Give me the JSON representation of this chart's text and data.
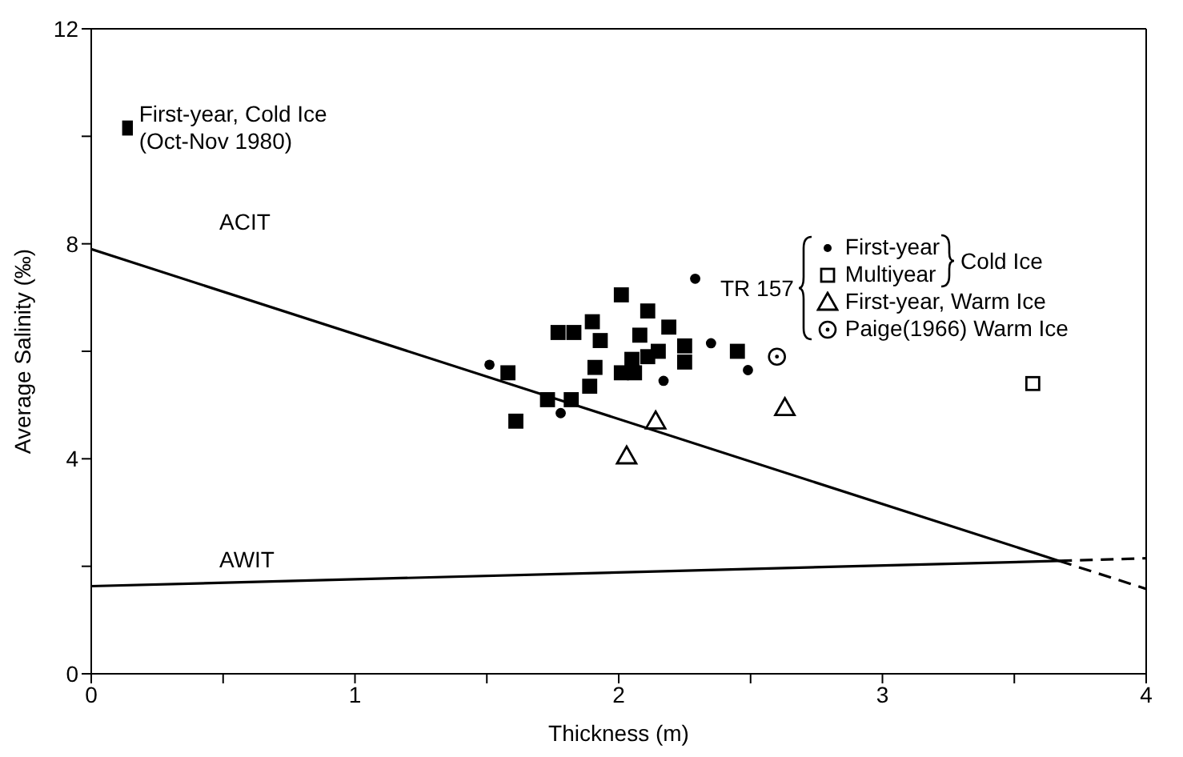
{
  "chart_data": {
    "type": "scatter",
    "xlabel": "Thickness (m)",
    "ylabel": "Average Salinity (‰)",
    "xlim": [
      0,
      4
    ],
    "ylim": [
      0,
      12
    ],
    "xticks": [
      0,
      {
        "value": 0.5,
        "label": null
      },
      1,
      {
        "value": 1.5,
        "label": null
      },
      2,
      {
        "value": 2.5,
        "label": null
      },
      3,
      {
        "value": 3.5,
        "label": null
      },
      4
    ],
    "yticks": [
      0,
      {
        "value": 2,
        "label": null
      },
      4,
      {
        "value": 6,
        "label": null
      },
      8,
      {
        "value": 10,
        "label": null
      },
      12
    ],
    "grid": false,
    "legend": "top",
    "annotations": [
      "TR 157",
      "Cold Ice"
    ],
    "series": [
      {
        "name": "First-year, Cold Ice (Oct-Nov 1980)",
        "marker": "square",
        "color": "#000000",
        "x": [
          1.58,
          1.61,
          1.73,
          1.82,
          1.77,
          1.83,
          1.9,
          1.93,
          1.91,
          1.89,
          2.01,
          2.01,
          2.06,
          2.05,
          2.08,
          2.11,
          2.11,
          2.15,
          2.19,
          2.25,
          2.25,
          2.45
        ],
        "values": [
          5.6,
          4.7,
          5.1,
          5.1,
          6.35,
          6.35,
          6.55,
          6.2,
          5.7,
          5.35,
          7.05,
          5.6,
          5.6,
          5.85,
          6.3,
          6.75,
          5.9,
          6.0,
          6.45,
          6.1,
          5.8,
          6.0
        ]
      },
      {
        "name": "First-year",
        "marker": "circle",
        "color": "#000000",
        "x": [
          1.51,
          1.78,
          2.29,
          2.17,
          2.35,
          2.49
        ],
        "values": [
          5.75,
          4.85,
          7.35,
          5.45,
          6.15,
          5.65
        ]
      },
      {
        "name": "Multiyear",
        "marker": "square",
        "color": "#000000",
        "x": [
          3.57
        ],
        "values": [
          5.4
        ]
      },
      {
        "name": "First-year, Warm Ice",
        "marker": "triangle",
        "color": "#000000",
        "x": [
          2.03,
          2.14,
          2.63
        ],
        "values": [
          4.05,
          4.7,
          4.95
        ]
      },
      {
        "name": "Paige(1966) Warm Ice",
        "marker": "circle",
        "color": "#000000",
        "x": [
          2.6
        ],
        "values": [
          5.9
        ]
      },
      {
        "name": "ACIT",
        "type": "line",
        "line_style": "solid",
        "color": "#000000",
        "x": [
          0,
          3.67
        ],
        "values": [
          7.9,
          2.1
        ]
      },
      {
        "name": "AWIT",
        "type": "line",
        "line_style": "solid",
        "color": "#000000",
        "x": [
          0,
          3.67
        ],
        "values": [
          1.63,
          2.1
        ]
      },
      {
        "type": "line",
        "line_style": "dashed",
        "color": "#000000",
        "x": [
          3.67,
          4
        ],
        "values": [
          2.1,
          1.58
        ]
      },
      {
        "type": "line",
        "line_style": "dashed",
        "color": "#000000",
        "x": [
          3.67,
          4
        ],
        "values": [
          2.1,
          2.15
        ]
      }
    ]
  }
}
